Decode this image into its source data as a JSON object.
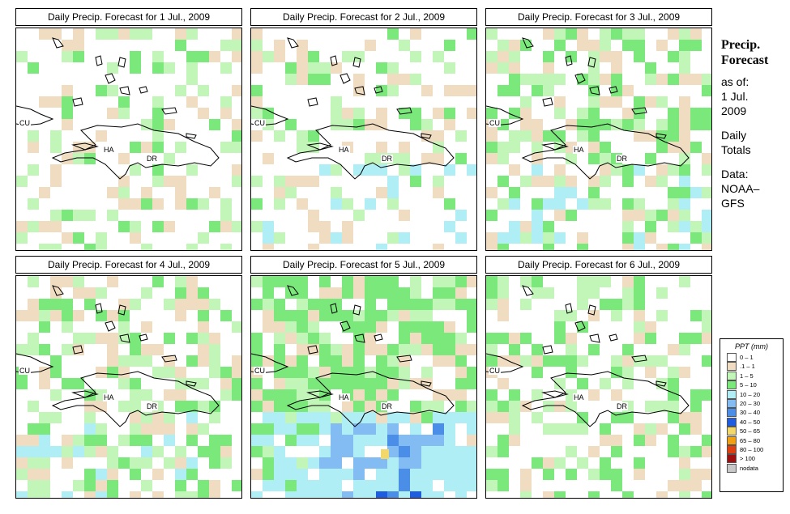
{
  "sidebar": {
    "title_line1": "Precip.",
    "title_line2": "Forecast",
    "asof_line1": "as of:",
    "asof_line2": "1 Jul.",
    "asof_line3": "2009",
    "totals_line1": "Daily",
    "totals_line2": "Totals",
    "data_line1": "Data:",
    "data_line2": "NOAA–",
    "data_line3": "GFS"
  },
  "country_labels": {
    "cuba": "CU",
    "haiti": "HA",
    "dominican_republic": "DR"
  },
  "legend": {
    "title": "PPT (mm)",
    "items": [
      {
        "label": "0 – 1",
        "color": "#ffffff"
      },
      {
        "label": ".1 – 1",
        "color": "#f0dcc0"
      },
      {
        "label": "1 – 5",
        "color": "#c2f5b8"
      },
      {
        "label": "5 – 10",
        "color": "#7ae87a"
      },
      {
        "label": "10 – 20",
        "color": "#b0eef5"
      },
      {
        "label": "20 – 30",
        "color": "#82bcf2"
      },
      {
        "label": "30 – 40",
        "color": "#4a8ee8"
      },
      {
        "label": "40 – 50",
        "color": "#1e5ce0"
      },
      {
        "label": "50 – 65",
        "color": "#f2d86a"
      },
      {
        "label": "65 – 80",
        "color": "#f0a010"
      },
      {
        "label": "80 – 100",
        "color": "#e04010"
      },
      {
        "label": "> 100",
        "color": "#a01010"
      },
      {
        "label": "nodata",
        "color": "#c8c8c8"
      }
    ]
  },
  "panels": [
    {
      "title": "Daily Precip. Forecast for  1 Jul., 2009",
      "density": 0.33,
      "wet": 0.18,
      "rain_level": 0
    },
    {
      "title": "Daily Precip. Forecast for  2 Jul., 2009",
      "density": 0.36,
      "wet": 0.25,
      "rain_level": 1
    },
    {
      "title": "Daily Precip. Forecast for  3 Jul., 2009",
      "density": 0.55,
      "wet": 0.35,
      "rain_level": 1
    },
    {
      "title": "Daily Precip. Forecast for  4 Jul., 2009",
      "density": 0.52,
      "wet": 0.3,
      "rain_level": 1
    },
    {
      "title": "Daily Precip. Forecast for  5 Jul., 2009",
      "density": 0.82,
      "wet": 0.55,
      "rain_level": 3
    },
    {
      "title": "Daily Precip. Forecast for  6 Jul., 2009",
      "density": 0.45,
      "wet": 0.3,
      "rain_level": 0
    }
  ]
}
